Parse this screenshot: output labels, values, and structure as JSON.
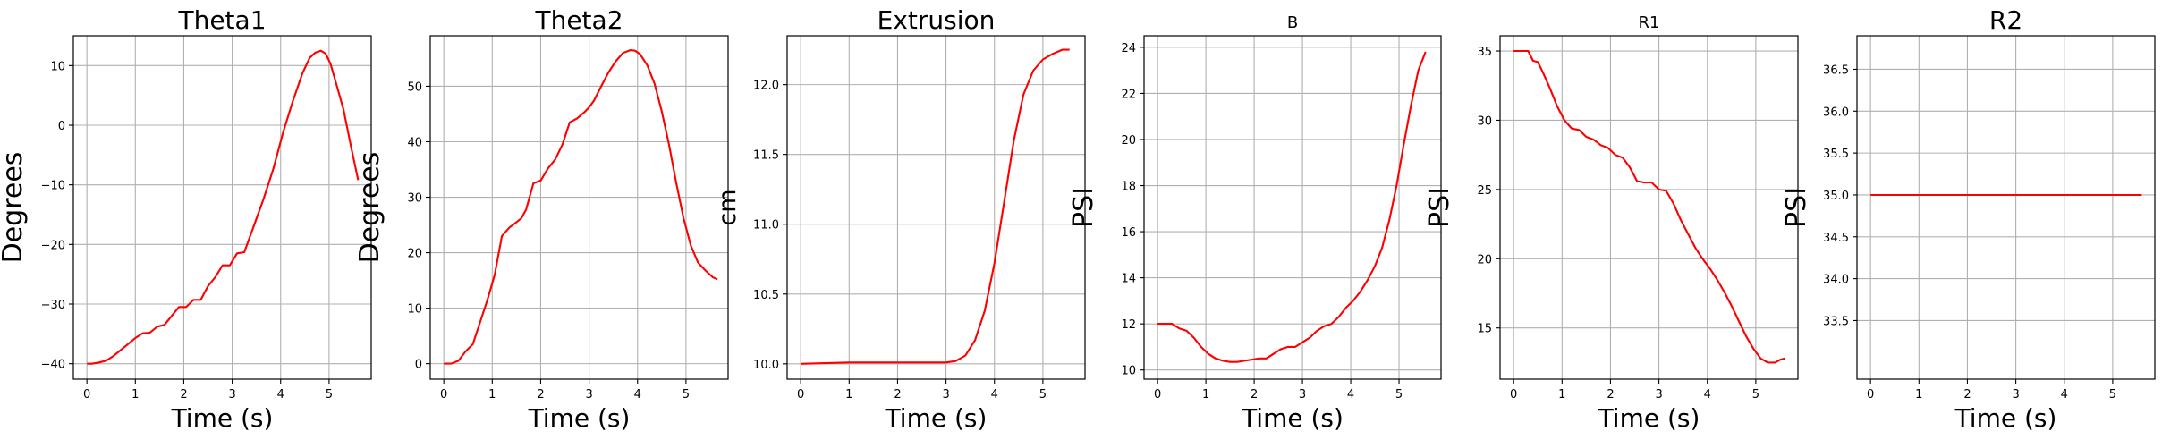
{
  "chart_data": [
    {
      "type": "line",
      "title": "Theta1",
      "xlabel": "Time (s)",
      "ylabel": "Degrees",
      "xlim": [
        -0.28,
        5.87
      ],
      "ylim": [
        -42.6,
        15.0
      ],
      "xticks": [
        0,
        1,
        2,
        3,
        4,
        5
      ],
      "yticks": [
        -40,
        -30,
        -20,
        -10,
        0,
        10
      ],
      "grid": true,
      "series": [
        {
          "color": "#ff0000",
          "x": [
            0,
            0.1,
            0.25,
            0.4,
            0.55,
            0.7,
            0.85,
            1.0,
            1.15,
            1.3,
            1.45,
            1.6,
            1.75,
            1.9,
            2.05,
            2.2,
            2.35,
            2.5,
            2.65,
            2.8,
            2.95,
            3.1,
            3.25,
            3.45,
            3.65,
            3.85,
            4.05,
            4.25,
            4.45,
            4.6,
            4.72,
            4.83,
            4.93,
            5.03,
            5.15,
            5.3,
            5.45,
            5.6
          ],
          "values": [
            -40,
            -40,
            -39.8,
            -39.5,
            -38.7,
            -37.7,
            -36.7,
            -35.7,
            -34.9,
            -34.8,
            -33.8,
            -33.5,
            -32.0,
            -30.5,
            -30.5,
            -29.3,
            -29.3,
            -27.0,
            -25.5,
            -23.5,
            -23.5,
            -21.5,
            -21.3,
            -16.8,
            -12.3,
            -7.3,
            -1.2,
            4.0,
            8.7,
            11.3,
            12.2,
            12.5,
            12.0,
            10.3,
            6.9,
            2.6,
            -3.5,
            -9.2
          ]
        }
      ]
    },
    {
      "type": "line",
      "title": "Theta2",
      "xlabel": "Time (s)",
      "ylabel": "Degrees",
      "xlim": [
        -0.28,
        5.87
      ],
      "ylim": [
        -2.8,
        59.1
      ],
      "xticks": [
        0,
        1,
        2,
        3,
        4,
        5
      ],
      "yticks": [
        0,
        10,
        20,
        30,
        40,
        50
      ],
      "grid": true,
      "series": [
        {
          "color": "#ff0000",
          "x": [
            0,
            0.15,
            0.3,
            0.45,
            0.6,
            0.75,
            0.9,
            1.05,
            1.2,
            1.35,
            1.5,
            1.6,
            1.7,
            1.85,
            2.0,
            2.15,
            2.3,
            2.45,
            2.6,
            2.75,
            2.9,
            3.0,
            3.1,
            3.25,
            3.4,
            3.55,
            3.7,
            3.85,
            3.95,
            4.05,
            4.2,
            4.35,
            4.5,
            4.65,
            4.8,
            4.95,
            5.1,
            5.25,
            5.4,
            5.55,
            5.65
          ],
          "values": [
            0,
            0,
            0.5,
            2.2,
            3.5,
            7.5,
            11.5,
            16.0,
            23.0,
            24.5,
            25.5,
            26.2,
            27.8,
            32.5,
            33.0,
            35.2,
            36.8,
            39.5,
            43.5,
            44.2,
            45.3,
            46.2,
            47.4,
            50.0,
            52.5,
            54.5,
            56.0,
            56.5,
            56.4,
            55.8,
            53.8,
            50.5,
            45.5,
            39.5,
            32.5,
            26.2,
            21.3,
            18.2,
            16.8,
            15.6,
            15.2
          ]
        }
      ]
    },
    {
      "type": "line",
      "title": "Extrusion",
      "xlabel": "Time (s)",
      "ylabel": "cm",
      "xlim": [
        -0.28,
        5.87
      ],
      "ylim": [
        9.89,
        12.35
      ],
      "xticks": [
        0,
        1,
        2,
        3,
        4,
        5
      ],
      "yticks": [
        10.0,
        10.5,
        11.0,
        11.5,
        12.0
      ],
      "grid": true,
      "series": [
        {
          "color": "#ff0000",
          "x": [
            0,
            1,
            2,
            3,
            3.2,
            3.4,
            3.6,
            3.8,
            4.0,
            4.2,
            4.4,
            4.6,
            4.8,
            5.0,
            5.2,
            5.4,
            5.55
          ],
          "values": [
            10.0,
            10.01,
            10.01,
            10.01,
            10.02,
            10.06,
            10.17,
            10.38,
            10.72,
            11.16,
            11.6,
            11.93,
            12.1,
            12.18,
            12.22,
            12.25,
            12.25
          ]
        }
      ]
    },
    {
      "type": "line",
      "title": "B",
      "xlabel": "Time (s)",
      "ylabel": "PSI",
      "xlim": [
        -0.28,
        5.87
      ],
      "ylim": [
        9.6,
        24.5
      ],
      "xticks": [
        0,
        1,
        2,
        3,
        4,
        5
      ],
      "yticks": [
        10,
        12,
        14,
        16,
        18,
        20,
        22,
        24
      ],
      "grid": true,
      "series": [
        {
          "color": "#ff0000",
          "x": [
            0,
            0.15,
            0.3,
            0.45,
            0.6,
            0.75,
            0.9,
            1.05,
            1.2,
            1.35,
            1.5,
            1.65,
            1.8,
            1.95,
            2.1,
            2.25,
            2.4,
            2.55,
            2.7,
            2.85,
            3.0,
            3.15,
            3.3,
            3.45,
            3.6,
            3.75,
            3.9,
            4.05,
            4.2,
            4.35,
            4.5,
            4.65,
            4.8,
            4.95,
            5.1,
            5.25,
            5.4,
            5.55
          ],
          "values": [
            12.0,
            12.0,
            12.0,
            11.8,
            11.7,
            11.4,
            11.0,
            10.7,
            10.5,
            10.4,
            10.35,
            10.35,
            10.4,
            10.45,
            10.5,
            10.5,
            10.7,
            10.9,
            11.0,
            11.0,
            11.2,
            11.4,
            11.7,
            11.9,
            12.0,
            12.3,
            12.7,
            13.0,
            13.4,
            13.9,
            14.5,
            15.3,
            16.5,
            18.0,
            19.8,
            21.5,
            23.0,
            23.8
          ]
        }
      ]
    },
    {
      "type": "line",
      "title": "R1",
      "xlabel": "Time (s)",
      "ylabel": "PSI",
      "xlim": [
        -0.28,
        5.87
      ],
      "ylim": [
        11.3,
        36.1
      ],
      "xticks": [
        0,
        1,
        2,
        3,
        4,
        5
      ],
      "yticks": [
        15,
        20,
        25,
        30,
        35
      ],
      "grid": true,
      "series": [
        {
          "color": "#ff0000",
          "x": [
            0,
            0.15,
            0.3,
            0.4,
            0.5,
            0.6,
            0.75,
            0.9,
            1.05,
            1.2,
            1.35,
            1.5,
            1.65,
            1.8,
            1.95,
            2.1,
            2.25,
            2.4,
            2.55,
            2.7,
            2.85,
            3.0,
            3.15,
            3.3,
            3.45,
            3.6,
            3.75,
            3.9,
            4.05,
            4.2,
            4.35,
            4.5,
            4.65,
            4.8,
            4.95,
            5.1,
            5.25,
            5.4,
            5.5,
            5.6
          ],
          "values": [
            35.0,
            35.0,
            35.0,
            34.3,
            34.2,
            33.5,
            32.3,
            31.0,
            30.0,
            29.4,
            29.3,
            28.8,
            28.6,
            28.2,
            28.0,
            27.5,
            27.3,
            26.6,
            25.6,
            25.5,
            25.5,
            25.0,
            24.9,
            24.0,
            22.8,
            21.8,
            20.8,
            20.0,
            19.3,
            18.5,
            17.6,
            16.6,
            15.5,
            14.4,
            13.5,
            12.8,
            12.5,
            12.5,
            12.7,
            12.8
          ]
        }
      ]
    },
    {
      "type": "line",
      "title": "R2",
      "xlabel": "Time (s)",
      "ylabel": "PSI",
      "xlim": [
        -0.28,
        5.87
      ],
      "ylim": [
        32.8,
        36.9
      ],
      "xticks": [
        0,
        1,
        2,
        3,
        4,
        5
      ],
      "yticks": [
        33.5,
        34.0,
        34.5,
        35.0,
        35.5,
        36.0,
        36.5
      ],
      "grid": true,
      "series": [
        {
          "color": "#ff0000",
          "x": [
            0,
            5.6
          ],
          "values": [
            35.0,
            35.0
          ]
        }
      ]
    }
  ]
}
